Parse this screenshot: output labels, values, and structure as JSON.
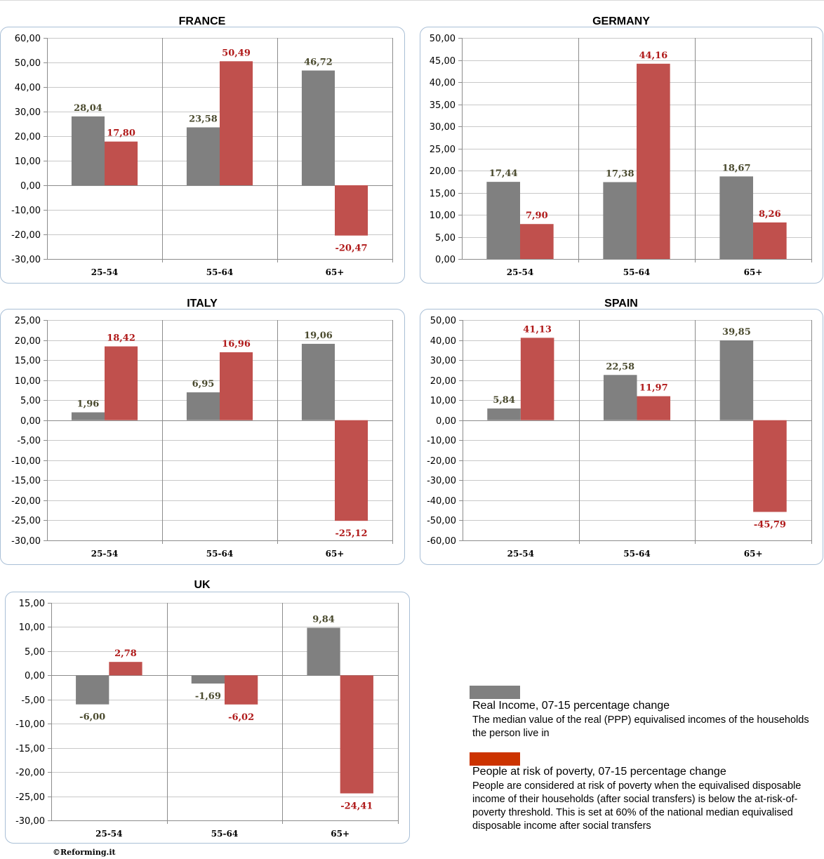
{
  "colors": {
    "real_income": "#808080",
    "poverty": "#c0504d",
    "real_income_label": "#4a4a2e",
    "poverty_label": "#b01a1a",
    "legend_real_income": "#808080",
    "legend_poverty": "#cc3300",
    "panel_border": "#a9bfd6",
    "gridline": "#c8c8c8",
    "category_divider": "#8c8c8c"
  },
  "chart_data": [
    {
      "type": "bar",
      "title": "FRANCE",
      "categories": [
        "25-54",
        "55-64",
        "65+"
      ],
      "series": [
        {
          "name": "Real Income, 07-15 percentage change",
          "values": [
            28.04,
            23.58,
            46.72
          ],
          "labels": [
            "28,04",
            "23,58",
            "46,72"
          ]
        },
        {
          "name": "People at risk of poverty, 07-15 percentage change",
          "values": [
            17.8,
            50.49,
            -20.47
          ],
          "labels": [
            "17,80",
            "50,49",
            "-20,47"
          ]
        }
      ],
      "ylim": [
        -30,
        60
      ],
      "ystep": 10,
      "yticks": [
        "60,00",
        "50,00",
        "40,00",
        "30,00",
        "20,00",
        "10,00",
        "0,00",
        "-10,00",
        "-20,00",
        "-30,00"
      ],
      "grid": true,
      "xlabel": "",
      "ylabel": ""
    },
    {
      "type": "bar",
      "title": "GERMANY",
      "categories": [
        "25-54",
        "55-64",
        "65+"
      ],
      "series": [
        {
          "name": "Real Income, 07-15 percentage change",
          "values": [
            17.44,
            17.38,
            18.67
          ],
          "labels": [
            "17,44",
            "17,38",
            "18,67"
          ]
        },
        {
          "name": "People at risk of poverty, 07-15 percentage change",
          "values": [
            7.9,
            44.16,
            8.26
          ],
          "labels": [
            "7,90",
            "44,16",
            "8,26"
          ]
        }
      ],
      "ylim": [
        0,
        50
      ],
      "ystep": 5,
      "yticks": [
        "50,00",
        "45,00",
        "40,00",
        "35,00",
        "30,00",
        "25,00",
        "20,00",
        "15,00",
        "10,00",
        "5,00",
        "0,00"
      ],
      "grid": true,
      "xlabel": "",
      "ylabel": ""
    },
    {
      "type": "bar",
      "title": "ITALY",
      "categories": [
        "25-54",
        "55-64",
        "65+"
      ],
      "series": [
        {
          "name": "Real Income, 07-15 percentage change",
          "values": [
            1.96,
            6.95,
            19.06
          ],
          "labels": [
            "1,96",
            "6,95",
            "19,06"
          ]
        },
        {
          "name": "People at risk of poverty, 07-15 percentage change",
          "values": [
            18.42,
            16.96,
            -25.12
          ],
          "labels": [
            "18,42",
            "16,96",
            "-25,12"
          ]
        }
      ],
      "ylim": [
        -30,
        25
      ],
      "ystep": 5,
      "yticks": [
        "25,00",
        "20,00",
        "15,00",
        "10,00",
        "5,00",
        "0,00",
        "-5,00",
        "-10,00",
        "-15,00",
        "-20,00",
        "-25,00",
        "-30,00"
      ],
      "grid": true,
      "xlabel": "",
      "ylabel": ""
    },
    {
      "type": "bar",
      "title": "SPAIN",
      "categories": [
        "25-54",
        "55-64",
        "65+"
      ],
      "series": [
        {
          "name": "Real Income, 07-15 percentage change",
          "values": [
            5.84,
            22.58,
            39.85
          ],
          "labels": [
            "5,84",
            "22,58",
            "39,85"
          ]
        },
        {
          "name": "People at risk of poverty, 07-15 percentage change",
          "values": [
            41.13,
            11.97,
            -45.79
          ],
          "labels": [
            "41,13",
            "11,97",
            "-45,79"
          ]
        }
      ],
      "ylim": [
        -60,
        50
      ],
      "ystep": 10,
      "yticks": [
        "50,00",
        "40,00",
        "30,00",
        "20,00",
        "10,00",
        "0,00",
        "-10,00",
        "-20,00",
        "-30,00",
        "-40,00",
        "-50,00",
        "-60,00"
      ],
      "grid": true,
      "xlabel": "",
      "ylabel": ""
    },
    {
      "type": "bar",
      "title": "UK",
      "categories": [
        "25-54",
        "55-64",
        "65+"
      ],
      "series": [
        {
          "name": "Real Income, 07-15 percentage change",
          "values": [
            -6.0,
            -1.69,
            9.84
          ],
          "labels": [
            "-6,00",
            "-1,69",
            "9,84"
          ]
        },
        {
          "name": "People at risk of poverty, 07-15 percentage change",
          "values": [
            2.78,
            -6.02,
            -24.41
          ],
          "labels": [
            "2,78",
            "-6,02",
            "-24,41"
          ]
        }
      ],
      "ylim": [
        -30,
        15
      ],
      "ystep": 5,
      "yticks": [
        "15,00",
        "10,00",
        "5,00",
        "0,00",
        "-5,00",
        "-10,00",
        "-15,00",
        "-20,00",
        "-25,00",
        "-30,00"
      ],
      "grid": true,
      "xlabel": "",
      "ylabel": ""
    }
  ],
  "legend": {
    "placement": "bottom-right",
    "items": [
      {
        "title": "Real Income, 07-15 percentage change",
        "description_lines": [
          "The median value of the real (PPP) equivalised incomes of the households",
          "the person live in"
        ]
      },
      {
        "title": "People at risk of poverty, 07-15 percentage change",
        "description_lines": [
          "People are considered at risk of poverty when the equivalised disposable",
          "income of their households (after social transfers) is below the at-risk-of-",
          "poverty threshold. This is set at 60% of the national median equivalised",
          "disposable income after social transfers"
        ]
      }
    ]
  },
  "credit": "©Reforming.it"
}
